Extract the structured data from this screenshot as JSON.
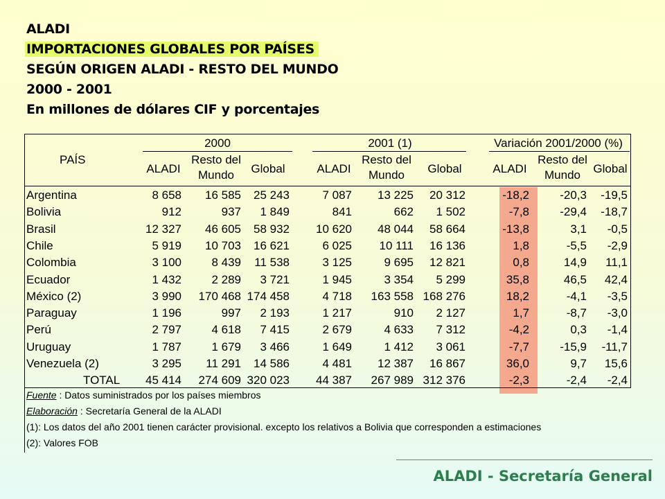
{
  "title_lines": [
    "ALADI",
    "IMPORTACIONES GLOBALES POR PAÍSES",
    "SEGÚN ORIGEN ALADI - RESTO DEL MUNDO",
    "2000 - 2001",
    "En millones de dólares CIF y porcentajes"
  ],
  "table": {
    "country_header": "PAÍS",
    "groups": [
      "2000",
      "2001 (1)",
      "Variación 2001/2000 (%)"
    ],
    "subheaders": [
      [
        "ALADI"
      ],
      [
        "Resto del",
        "Mundo"
      ],
      [
        "Global"
      ],
      [
        "ALADI"
      ],
      [
        "Resto del",
        "Mundo"
      ],
      [
        "Global"
      ],
      [
        "ALADI"
      ],
      [
        "Resto del",
        "Mundo"
      ],
      [
        "Global"
      ]
    ],
    "rows": [
      {
        "country": "Argentina",
        "values": [
          "8 658",
          "16 585",
          "25 243",
          "7 087",
          "13 225",
          "20 312",
          "-18,2",
          "-20,3",
          "-19,5"
        ]
      },
      {
        "country": "Bolivia",
        "values": [
          "912",
          "937",
          "1 849",
          "841",
          "662",
          "1 502",
          "-7,8",
          "-29,4",
          "-18,7"
        ]
      },
      {
        "country": "Brasil",
        "values": [
          "12 327",
          "46 605",
          "58 932",
          "10 620",
          "48 044",
          "58 664",
          "-13,8",
          "3,1",
          "-0,5"
        ]
      },
      {
        "country": "Chile",
        "values": [
          "5 919",
          "10 703",
          "16 621",
          "6 025",
          "10 111",
          "16 136",
          "1,8",
          "-5,5",
          "-2,9"
        ]
      },
      {
        "country": "Colombia",
        "values": [
          "3 100",
          "8 439",
          "11 538",
          "3 125",
          "9 695",
          "12 821",
          "0,8",
          "14,9",
          "11,1"
        ]
      },
      {
        "country": "Ecuador",
        "values": [
          "1 432",
          "2 289",
          "3 721",
          "1 945",
          "3 354",
          "5 299",
          "35,8",
          "46,5",
          "42,4"
        ]
      },
      {
        "country": "México (2)",
        "values": [
          "3 990",
          "170 468",
          "174 458",
          "4 718",
          "163 558",
          "168 276",
          "18,2",
          "-4,1",
          "-3,5"
        ]
      },
      {
        "country": "Paraguay",
        "values": [
          "1 196",
          "997",
          "2 193",
          "1 217",
          "910",
          "2 127",
          "1,7",
          "-8,7",
          "-3,0"
        ]
      },
      {
        "country": "Perú",
        "values": [
          "2 797",
          "4 618",
          "7 415",
          "2 679",
          "4 633",
          "7 312",
          "-4,2",
          "0,3",
          "-1,4"
        ]
      },
      {
        "country": "Uruguay",
        "values": [
          "1 787",
          "1 679",
          "3 466",
          "1 649",
          "1 412",
          "3 061",
          "-7,7",
          "-15,9",
          "-11,7"
        ]
      },
      {
        "country": "Venezuela (2)",
        "values": [
          "3 295",
          "11 291",
          "14 586",
          "4 481",
          "12 387",
          "16 867",
          "36,0",
          "9,7",
          "15,6"
        ]
      }
    ],
    "total": {
      "label": "TOTAL",
      "values": [
        "45 414",
        "274 609",
        "320 023",
        "44 387",
        "267 989",
        "312 376",
        "-2,3",
        "-2,4",
        "-2,4"
      ]
    }
  },
  "notes": [
    {
      "label": "Fuente",
      "sep": " :  ",
      "text": "Datos suministrados por los países miembros"
    },
    {
      "label": "Elaboración",
      "sep": " :  ",
      "text": "Secretaría General de la ALADI"
    },
    {
      "label": "",
      "sep": "",
      "text": "(1): Los datos del año 2001 tienen carácter provisional. excepto los relativos a Bolivia que corresponden a estimaciones"
    },
    {
      "label": "",
      "sep": "",
      "text": "(2): Valores FOB"
    }
  ],
  "footer": "ALADI - Secretaría General",
  "colors": {
    "title_highlight": "#e6fb6c",
    "variation_shade": "#f4a98e",
    "footer_text": "#2d7e4f",
    "footer_rule": "#e05050"
  }
}
